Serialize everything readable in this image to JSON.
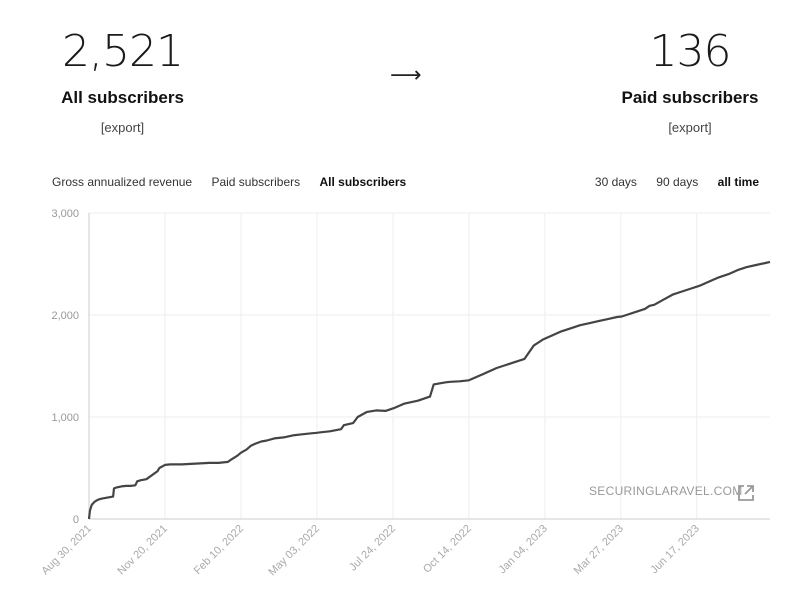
{
  "stats": {
    "all": {
      "value": "2,521",
      "label": "All subscribers",
      "export": "[export]"
    },
    "arrow": "⟶",
    "paid": {
      "value": "136",
      "label": "Paid subscribers",
      "export": "[export]"
    }
  },
  "metric_tabs": [
    {
      "label": "Gross annualized revenue",
      "active": false
    },
    {
      "label": "Paid subscribers",
      "active": false
    },
    {
      "label": "All subscribers",
      "active": true
    }
  ],
  "range_tabs": [
    {
      "label": "30 days",
      "active": false
    },
    {
      "label": "90 days",
      "active": false
    },
    {
      "label": "all time",
      "active": true
    }
  ],
  "watermark": "SECURINGLARAVEL.COM",
  "colors": {
    "line": "#444444",
    "grid": "#eeeeee",
    "axis": "#cccccc"
  },
  "chart_data": {
    "type": "line",
    "title": "",
    "xlabel": "",
    "ylabel": "",
    "ylim": [
      0,
      3000
    ],
    "yticks": [
      "0",
      "1,000",
      "2,000",
      "3,000"
    ],
    "ytick_values": [
      0,
      1000,
      2000,
      3000
    ],
    "xticks": [
      "Aug 30, 2021",
      "Nov 20, 2021",
      "Feb 10, 2022",
      "May 03, 2022",
      "Jul 24, 2022",
      "Oct 14, 2022",
      "Jan 04, 2023",
      "Mar 27, 2023",
      "Jun 17, 2023"
    ],
    "xtick_days": [
      0,
      82,
      164,
      246,
      328,
      410,
      492,
      574,
      656
    ],
    "xlim_days": [
      0,
      735
    ],
    "series": [
      {
        "name": "All subscribers",
        "days": [
          0,
          1,
          3,
          6,
          10,
          14,
          20,
          26,
          27,
          30,
          35,
          40,
          45,
          50,
          52,
          56,
          62,
          74,
          76,
          82,
          88,
          100,
          110,
          120,
          130,
          140,
          150,
          153,
          160,
          164,
          170,
          175,
          180,
          186,
          192,
          200,
          210,
          220,
          230,
          240,
          246,
          250,
          260,
          272,
          275,
          285,
          290,
          300,
          310,
          320,
          330,
          340,
          345,
          350,
          355,
          368,
          372,
          385,
          390,
          400,
          410,
          420,
          425,
          430,
          440,
          450,
          460,
          470,
          480,
          490,
          500,
          510,
          520,
          530,
          540,
          550,
          560,
          570,
          575,
          580,
          590,
          600,
          605,
          610,
          620,
          630,
          640,
          650,
          660,
          670,
          680,
          690,
          700,
          710,
          720,
          730,
          735
        ],
        "values": [
          0,
          80,
          140,
          170,
          190,
          200,
          210,
          220,
          300,
          310,
          320,
          325,
          325,
          330,
          370,
          380,
          390,
          470,
          500,
          530,
          535,
          535,
          540,
          545,
          550,
          550,
          560,
          580,
          620,
          650,
          680,
          720,
          740,
          760,
          770,
          790,
          800,
          820,
          830,
          840,
          845,
          850,
          860,
          880,
          920,
          940,
          1000,
          1050,
          1065,
          1060,
          1090,
          1130,
          1140,
          1150,
          1160,
          1200,
          1320,
          1340,
          1345,
          1350,
          1360,
          1400,
          1420,
          1440,
          1480,
          1510,
          1540,
          1570,
          1700,
          1760,
          1800,
          1840,
          1870,
          1900,
          1920,
          1940,
          1960,
          1980,
          1985,
          2000,
          2030,
          2060,
          2090,
          2100,
          2150,
          2200,
          2230,
          2260,
          2290,
          2330,
          2370,
          2400,
          2440,
          2470,
          2490,
          2510,
          2521
        ]
      }
    ]
  }
}
